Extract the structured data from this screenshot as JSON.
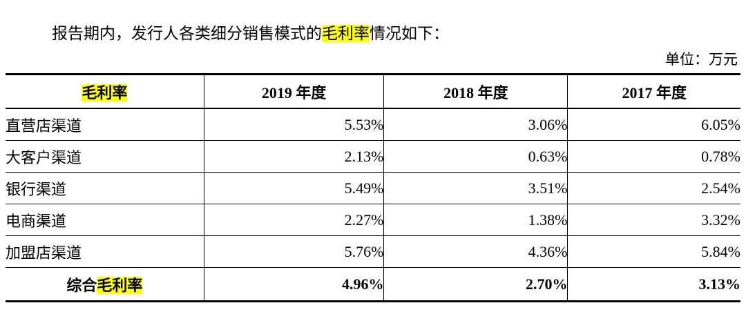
{
  "intro": {
    "pre": "报告期内，发行人各类细分销售模式的",
    "highlight": "毛利率",
    "post": "情况如下："
  },
  "unit_label": "单位：万元",
  "colors": {
    "highlight": "#ffff00",
    "border": "#000000"
  },
  "table": {
    "header": {
      "col0": "毛利率",
      "cols": [
        "2019 年度",
        "2018 年度",
        "2017 年度"
      ]
    },
    "rows": [
      {
        "label": "直营店渠道",
        "values": [
          "5.53%",
          "3.06%",
          "6.05%"
        ]
      },
      {
        "label": "大客户渠道",
        "values": [
          "2.13%",
          "0.63%",
          "0.78%"
        ]
      },
      {
        "label": "银行渠道",
        "values": [
          "5.49%",
          "3.51%",
          "2.54%"
        ]
      },
      {
        "label": "电商渠道",
        "values": [
          "2.27%",
          "1.38%",
          "3.32%"
        ]
      },
      {
        "label": "加盟店渠道",
        "values": [
          "5.76%",
          "4.36%",
          "5.84%"
        ]
      }
    ],
    "total_row": {
      "label_pre": "综合",
      "label_highlight": "毛利率",
      "values": [
        "4.96%",
        "2.70%",
        "3.13%"
      ]
    }
  }
}
